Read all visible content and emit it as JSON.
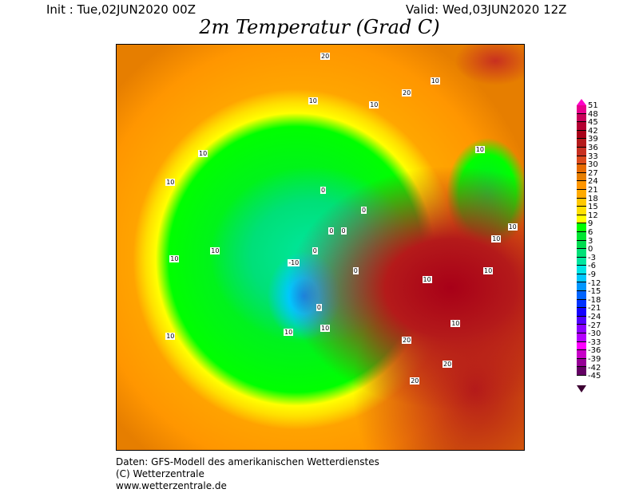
{
  "header": {
    "init": "Init : Tue,02JUN2020 00Z",
    "valid": "Valid: Wed,03JUN2020 12Z",
    "title": "2m Temperatur (Grad C)"
  },
  "map": {
    "contour_labels": [
      "20",
      "10",
      "10",
      "10",
      "20",
      "10",
      "0",
      "0",
      "0",
      "0",
      "10",
      "10",
      "10",
      "10",
      "-10",
      "0",
      "10",
      "10",
      "20",
      "20",
      "10",
      "20",
      "10",
      "10",
      "10",
      "0",
      "0",
      "10",
      "10"
    ]
  },
  "legend": {
    "ticks": [
      "51",
      "48",
      "45",
      "42",
      "39",
      "36",
      "33",
      "30",
      "27",
      "24",
      "21",
      "18",
      "15",
      "12",
      "9",
      "6",
      "3",
      "0",
      "-3",
      "-6",
      "-9",
      "-12",
      "-15",
      "-18",
      "-21",
      "-24",
      "-27",
      "-30",
      "-33",
      "-36",
      "-39",
      "-42",
      "-45"
    ],
    "colors": [
      "#e8008c",
      "#c8005a",
      "#b40032",
      "#a80018",
      "#b41a1a",
      "#c83020",
      "#dc4a1c",
      "#e66a00",
      "#e67e00",
      "#ff9600",
      "#ffaa00",
      "#ffc800",
      "#ffe000",
      "#ffff00",
      "#00ff00",
      "#00e632",
      "#00dc50",
      "#00e078",
      "#00e6a0",
      "#00e6e6",
      "#00c8ff",
      "#0096ff",
      "#0064ff",
      "#0032ff",
      "#1400ff",
      "#5000ff",
      "#8c00ff",
      "#b400ff",
      "#ff00ff",
      "#c800c8",
      "#960096",
      "#640064"
    ]
  },
  "footer": {
    "line1": "Daten: GFS-Modell des amerikanischen Wetterdienstes",
    "line2": "(C) Wetterzentrale",
    "line3": "www.wetterzentrale.de"
  }
}
